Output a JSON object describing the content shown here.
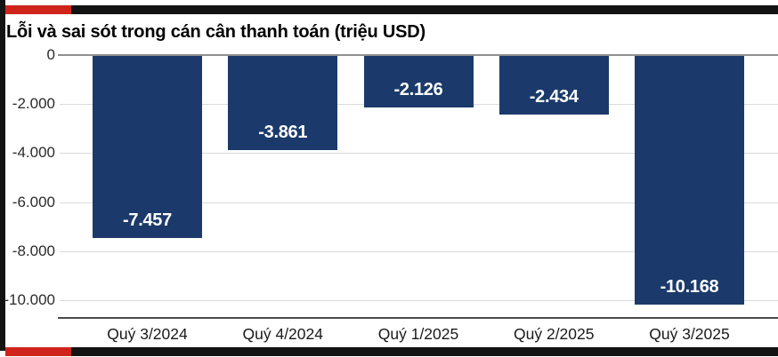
{
  "frame": {
    "accent_color": "#cf241c",
    "frame_color": "#131313"
  },
  "chart_data": {
    "type": "bar",
    "title": "Lỗi và sai sót trong cán cân thanh toán (triệu USD)",
    "unit": "triệu USD",
    "categories": [
      "Quý 3/2024",
      "Quý 4/2024",
      "Quý 1/2025",
      "Quý 2/2025",
      "Quý 3/2025"
    ],
    "values": [
      -7457,
      -3861,
      -2126,
      -2434,
      -10168
    ],
    "value_labels": [
      "-7.457",
      "-3.861",
      "-2.126",
      "-2.434",
      "-10.168"
    ],
    "yticks": [
      {
        "value": 0,
        "label": "0"
      },
      {
        "value": -2000,
        "label": "-2.000"
      },
      {
        "value": -4000,
        "label": "-4.000"
      },
      {
        "value": -6000,
        "label": "-6.000"
      },
      {
        "value": -8000,
        "label": "-8.000"
      },
      {
        "value": -10000,
        "label": "-10.000"
      }
    ],
    "ylim": [
      -10700,
      0
    ],
    "xlabel": "",
    "ylabel": "",
    "grid": true,
    "legend": "none",
    "bar_color": "#1b3a6b",
    "value_label_color": "#ffffff",
    "gridline_color": "#d9d9d9",
    "zero_line_color": "#8f8f8f",
    "axis_line_color": "#4a4a4a"
  }
}
